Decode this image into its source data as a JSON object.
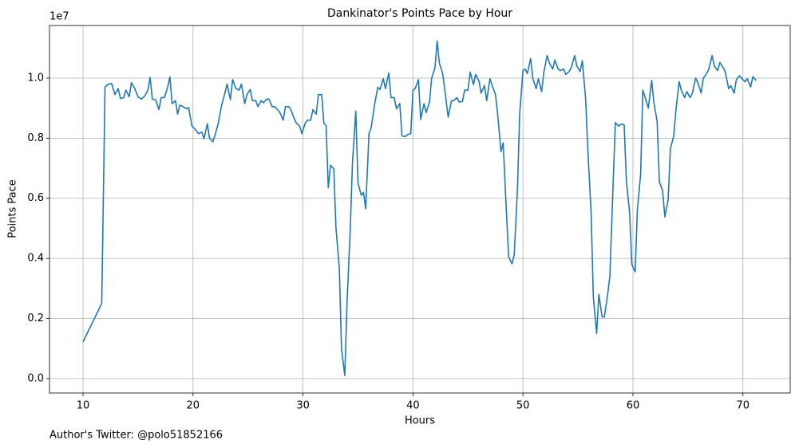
{
  "chart_data": {
    "type": "line",
    "title": "Dankinator's Points Pace by Hour",
    "x_label": "Hours",
    "y_label": "Points Pace",
    "y_offset_label": "1e7",
    "annotation": "Author's Twitter: @polo51852166",
    "grid": true,
    "xlim": [
      6.95,
      74.3
    ],
    "ylim": [
      -480000,
      11750000
    ],
    "xticks": [
      10,
      20,
      30,
      40,
      50,
      60,
      70
    ],
    "yticks": [
      {
        "value": 0,
        "label": "0.0"
      },
      {
        "value": 2000000,
        "label": "0.2"
      },
      {
        "value": 4000000,
        "label": "0.4"
      },
      {
        "value": 6000000,
        "label": "0.6"
      },
      {
        "value": 8000000,
        "label": "0.8"
      },
      {
        "value": 10000000,
        "label": "1.0"
      }
    ],
    "series": [
      {
        "color": "#1f77b4",
        "x": [
          10.0,
          10.5,
          11.7,
          12.0,
          12.3,
          12.6,
          12.9,
          13.2,
          13.4,
          13.7,
          13.9,
          14.2,
          14.4,
          14.7,
          15.0,
          15.3,
          15.6,
          15.9,
          16.1,
          16.3,
          16.6,
          16.9,
          17.1,
          17.4,
          17.7,
          17.9,
          18.1,
          18.4,
          18.6,
          18.8,
          19.1,
          19.4,
          19.6,
          19.9,
          20.2,
          20.5,
          20.8,
          21.0,
          21.3,
          21.5,
          21.8,
          22.0,
          22.3,
          22.6,
          22.9,
          23.1,
          23.4,
          23.6,
          23.9,
          24.2,
          24.4,
          24.7,
          24.9,
          25.2,
          25.4,
          25.7,
          25.9,
          26.2,
          26.4,
          26.7,
          26.9,
          27.2,
          27.4,
          27.7,
          27.9,
          28.2,
          28.4,
          28.7,
          28.9,
          29.2,
          29.4,
          29.7,
          29.9,
          30.2,
          30.4,
          30.7,
          30.9,
          31.2,
          31.4,
          31.7,
          31.9,
          32.1,
          32.3,
          32.5,
          32.8,
          33.0,
          33.3,
          33.5,
          33.8,
          34.0,
          34.3,
          34.5,
          34.8,
          35.0,
          35.3,
          35.5,
          35.7,
          36.0,
          36.2,
          36.5,
          36.8,
          37.0,
          37.3,
          37.5,
          37.8,
          38.0,
          38.3,
          38.5,
          38.8,
          39.0,
          39.3,
          39.5,
          39.8,
          40.0,
          40.2,
          40.5,
          40.7,
          41.0,
          41.2,
          41.5,
          41.7,
          42.0,
          42.2,
          42.4,
          42.7,
          43.0,
          43.2,
          43.5,
          43.7,
          44.0,
          44.2,
          44.5,
          44.7,
          45.0,
          45.2,
          45.5,
          45.7,
          46.0,
          46.2,
          46.5,
          46.7,
          47.0,
          47.2,
          47.5,
          47.7,
          48.0,
          48.2,
          48.5,
          48.7,
          49.0,
          49.2,
          49.5,
          49.7,
          50.0,
          50.2,
          50.4,
          50.7,
          50.9,
          51.2,
          51.4,
          51.7,
          51.9,
          52.2,
          52.4,
          52.7,
          52.9,
          53.2,
          53.4,
          53.7,
          53.9,
          54.2,
          54.4,
          54.7,
          54.9,
          55.2,
          55.4,
          55.7,
          55.9,
          56.2,
          56.4,
          56.7,
          56.9,
          57.2,
          57.4,
          57.7,
          57.9,
          58.2,
          58.4,
          58.7,
          58.9,
          59.2,
          59.4,
          59.7,
          59.9,
          60.2,
          60.4,
          60.7,
          60.9,
          61.2,
          61.4,
          61.7,
          61.9,
          62.2,
          62.4,
          62.7,
          62.9,
          63.2,
          63.4,
          63.7,
          63.9,
          64.2,
          64.4,
          64.7,
          64.9,
          65.2,
          65.4,
          65.7,
          65.9,
          66.2,
          66.4,
          66.7,
          66.9,
          67.2,
          67.4,
          67.7,
          67.9,
          68.2,
          68.4,
          68.7,
          68.9,
          69.2,
          69.4,
          69.7,
          69.9,
          70.2,
          70.4,
          70.7,
          70.9,
          71.2
        ],
        "values": [
          1220000,
          1600000,
          2500000,
          9700000,
          9800000,
          9820000,
          9450000,
          9650000,
          9320000,
          9350000,
          9600000,
          9380000,
          9850000,
          9650000,
          9380000,
          9300000,
          9400000,
          9600000,
          10020000,
          9300000,
          9280000,
          8950000,
          9350000,
          9350000,
          9700000,
          10040000,
          9150000,
          9250000,
          8800000,
          9100000,
          9050000,
          8980000,
          9020000,
          8400000,
          8300000,
          8150000,
          8200000,
          7980000,
          8480000,
          8000000,
          7880000,
          8100000,
          8500000,
          9100000,
          9500000,
          9800000,
          9280000,
          9950000,
          9650000,
          9600000,
          9800000,
          9150000,
          9450000,
          9620000,
          9250000,
          9250000,
          9050000,
          9250000,
          9180000,
          9300000,
          9300000,
          9050000,
          9050000,
          8950000,
          8850000,
          8600000,
          9050000,
          9050000,
          8950000,
          8650000,
          8500000,
          8400000,
          8150000,
          8500000,
          8600000,
          8600000,
          8950000,
          8800000,
          9450000,
          9450000,
          8500000,
          8420000,
          6350000,
          7100000,
          6980000,
          5000000,
          3700000,
          1000000,
          100000,
          2500000,
          5000000,
          7200000,
          8900000,
          6500000,
          6100000,
          6200000,
          5650000,
          8150000,
          8350000,
          9100000,
          9700000,
          9620000,
          9980000,
          9650000,
          10170000,
          9350000,
          9350000,
          8980000,
          9150000,
          8080000,
          8050000,
          8120000,
          8150000,
          9600000,
          9650000,
          9950000,
          8620000,
          9150000,
          8850000,
          9200000,
          10000000,
          10350000,
          11230000,
          10500000,
          10150000,
          9300000,
          8700000,
          9250000,
          9250000,
          9350000,
          9200000,
          9220000,
          9600000,
          9600000,
          10200000,
          9780000,
          10120000,
          9900000,
          9500000,
          9750000,
          9250000,
          9980000,
          9750000,
          9450000,
          8800000,
          7550000,
          7850000,
          5500000,
          4050000,
          3820000,
          4100000,
          6300000,
          8800000,
          10250000,
          10300000,
          10150000,
          10650000,
          9980000,
          9650000,
          9980000,
          9550000,
          10200000,
          10750000,
          10500000,
          10300000,
          10600000,
          10300000,
          10250000,
          10300000,
          10120000,
          10220000,
          10350000,
          10750000,
          10400000,
          10220000,
          10580000,
          9300000,
          7600000,
          5500000,
          2700000,
          1500000,
          2800000,
          2050000,
          2050000,
          2800000,
          3400000,
          6500000,
          8520000,
          8400000,
          8470000,
          8450000,
          6600000,
          5500000,
          3800000,
          3550000,
          5600000,
          6800000,
          9600000,
          9250000,
          9000000,
          9920000,
          9200000,
          8550000,
          6550000,
          6250000,
          5380000,
          5950000,
          7650000,
          8050000,
          8900000,
          9880000,
          9600000,
          9350000,
          9550000,
          9350000,
          9500000,
          10000000,
          9850000,
          9500000,
          10000000,
          10150000,
          10300000,
          10750000,
          10400000,
          10250000,
          10520000,
          10350000,
          10200000,
          9650000,
          9750000,
          9500000,
          9950000,
          10080000,
          9980000,
          9880000,
          9980000,
          9700000,
          10050000,
          9920000
        ]
      }
    ]
  }
}
